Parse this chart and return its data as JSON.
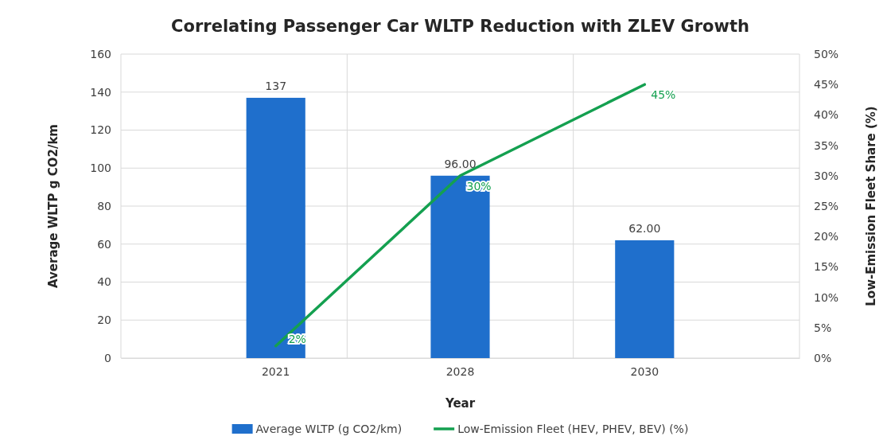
{
  "chart_data": {
    "type": "bar",
    "title": "Correlating Passenger Car WLTP Reduction with ZLEV Growth",
    "xlabel": "Year",
    "ylabel": "Average WLTP g CO2/km",
    "y2label": "Low-Emission Fleet Share (%)",
    "categories": [
      "2021",
      "2028",
      "2030"
    ],
    "series": [
      {
        "name": "Average WLTP (g CO2/km)",
        "color": "#1f6fcc",
        "values": [
          137,
          96,
          62
        ],
        "value_labels": [
          "137",
          "96.00",
          "62.00"
        ]
      },
      {
        "name": "Low-Emission Fleet (HEV, PHEV, BEV) (%)",
        "type": "line",
        "axis": "y2",
        "color": "#14a050",
        "values": [
          2,
          30,
          45
        ],
        "value_labels": [
          "2%",
          "30%",
          "45%"
        ]
      }
    ],
    "ylim": [
      0,
      160
    ],
    "yticks": [
      0,
      20,
      40,
      60,
      80,
      100,
      120,
      140,
      160
    ],
    "y2lim": [
      0,
      50
    ],
    "y2ticks": [
      {
        "value": 0,
        "label": "0%"
      },
      {
        "value": 5,
        "label": "5%"
      },
      {
        "value": 10,
        "label": "10%"
      },
      {
        "value": 15,
        "label": "15%"
      },
      {
        "value": 20,
        "label": "20%"
      },
      {
        "value": 25,
        "label": "25%"
      },
      {
        "value": 30,
        "label": "30%"
      },
      {
        "value": 35,
        "label": "35%"
      },
      {
        "value": 40,
        "label": "40%"
      },
      {
        "value": 45,
        "label": "45%"
      },
      {
        "value": 50,
        "label": "50%"
      }
    ],
    "grid": true,
    "legend": "bottom",
    "marker": "none",
    "line_style": "solid"
  }
}
